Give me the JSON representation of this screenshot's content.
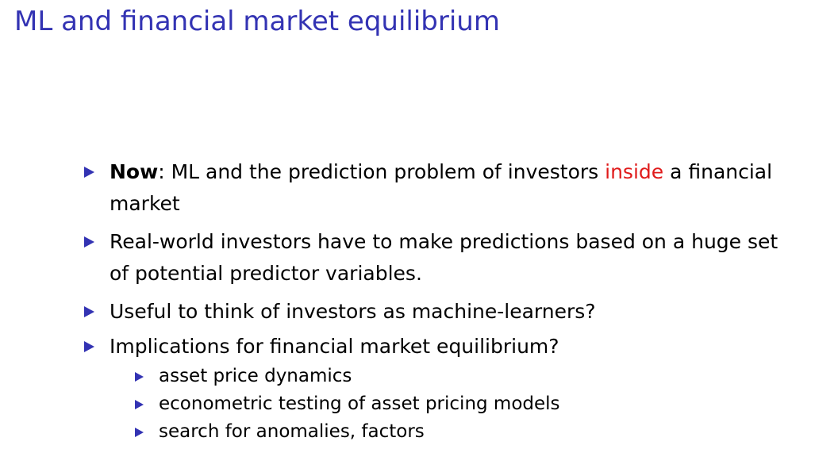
{
  "title": "ML and financial market equilibrium",
  "bullets": [
    {
      "bold": "Now",
      "text_before": ": ML and the prediction problem of investors ",
      "highlight": "inside",
      "text_after": " a financial market"
    },
    {
      "text": "Real-world investors have to make predictions based on a huge set of potential predictor variables."
    },
    {
      "text": "Useful to think of investors as machine-learners?"
    },
    {
      "text": "Implications for financial market equilibrium?",
      "subitems": [
        "asset price dynamics",
        "econometric testing of asset pricing models",
        "search for anomalies, factors"
      ]
    }
  ],
  "colors": {
    "title": "#3333b3",
    "bullet_marker": "#3333b3",
    "highlight": "#e01b1b"
  },
  "icons": {
    "bullet": "triangle-right-icon"
  }
}
